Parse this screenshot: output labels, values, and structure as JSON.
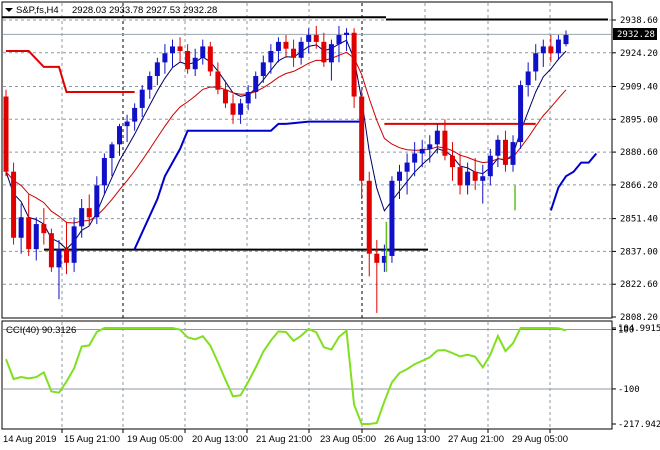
{
  "header": {
    "symbol": "S&P,fs,H4",
    "ohlc": "2928.03 2933.78 2927.53 2932.28"
  },
  "indicator": {
    "name": "CCI(40) 90.3126"
  },
  "price_axis": {
    "labels": [
      "2938.60",
      "2924.20",
      "2909.40",
      "2895.00",
      "2880.60",
      "2866.20",
      "2851.40",
      "2837.00",
      "2822.60",
      "2808.20"
    ],
    "current_price": "2932.28"
  },
  "cci_axis": {
    "labels": [
      "104.9915",
      "100",
      "-100",
      "-217.9424"
    ]
  },
  "time_axis": {
    "labels": [
      "14 Aug 2019",
      "15 Aug 21:00",
      "19 Aug 05:00",
      "20 Aug 13:00",
      "21 Aug 21:00",
      "23 Aug 05:00",
      "26 Aug 13:00",
      "27 Aug 21:00",
      "29 Aug 05:00"
    ]
  },
  "colors": {
    "bull": "#1010c8",
    "bear": "#e00000",
    "ma_fast": "#000066",
    "ma_slow": "#cc0000",
    "stop_red": "#e00000",
    "stop_blue": "#0000cc",
    "cci": "#80e020",
    "grid": "#8c9aa6",
    "sr": "#000000"
  },
  "chart_data": {
    "type": "candlestick",
    "ylim": [
      2808.2,
      2940.0
    ],
    "candles": [
      [
        2905,
        2908,
        2870,
        2872
      ],
      [
        2872,
        2876,
        2840,
        2843
      ],
      [
        2843,
        2858,
        2836,
        2852
      ],
      [
        2852,
        2862,
        2835,
        2838
      ],
      [
        2838,
        2852,
        2833,
        2849
      ],
      [
        2849,
        2856,
        2840,
        2845
      ],
      [
        2845,
        2847,
        2828,
        2830
      ],
      [
        2830,
        2842,
        2816,
        2838
      ],
      [
        2838,
        2850,
        2827,
        2832
      ],
      [
        2832,
        2852,
        2828,
        2848
      ],
      [
        2848,
        2860,
        2843,
        2856
      ],
      [
        2856,
        2862,
        2848,
        2852
      ],
      [
        2852,
        2870,
        2849,
        2866
      ],
      [
        2866,
        2880,
        2862,
        2878
      ],
      [
        2878,
        2885,
        2870,
        2884
      ],
      [
        2884,
        2893,
        2879,
        2892
      ],
      [
        2892,
        2897,
        2885,
        2894
      ],
      [
        2894,
        2902,
        2890,
        2900
      ],
      [
        2900,
        2910,
        2896,
        2908
      ],
      [
        2908,
        2916,
        2904,
        2914
      ],
      [
        2914,
        2922,
        2910,
        2920
      ],
      [
        2920,
        2928,
        2915,
        2924
      ],
      [
        2924,
        2930,
        2918,
        2927
      ],
      [
        2927,
        2931,
        2920,
        2925
      ],
      [
        2925,
        2928,
        2915,
        2917
      ],
      [
        2917,
        2926,
        2914,
        2922
      ],
      [
        2922,
        2930,
        2919,
        2927
      ],
      [
        2927,
        2929,
        2914,
        2916
      ],
      [
        2916,
        2920,
        2906,
        2908
      ],
      [
        2908,
        2912,
        2900,
        2902
      ],
      [
        2902,
        2906,
        2893,
        2897
      ],
      [
        2897,
        2904,
        2893,
        2902
      ],
      [
        2902,
        2910,
        2899,
        2907
      ],
      [
        2907,
        2916,
        2904,
        2914
      ],
      [
        2914,
        2923,
        2911,
        2920
      ],
      [
        2920,
        2928,
        2915,
        2925
      ],
      [
        2925,
        2931,
        2920,
        2929
      ],
      [
        2929,
        2932,
        2922,
        2926
      ],
      [
        2926,
        2930,
        2918,
        2922
      ],
      [
        2922,
        2931,
        2919,
        2929
      ],
      [
        2929,
        2935,
        2924,
        2932
      ],
      [
        2932,
        2936,
        2926,
        2929
      ],
      [
        2929,
        2933,
        2918,
        2920
      ],
      [
        2920,
        2930,
        2912,
        2928
      ],
      [
        2928,
        2936,
        2920,
        2932
      ],
      [
        2932,
        2935,
        2925,
        2933
      ],
      [
        2933,
        2935,
        2900,
        2905
      ],
      [
        2905,
        2908,
        2860,
        2868
      ],
      [
        2868,
        2872,
        2826,
        2836
      ],
      [
        2836,
        2842,
        2810,
        2832
      ],
      [
        2832,
        2840,
        2828,
        2835
      ],
      [
        2835,
        2870,
        2832,
        2868
      ],
      [
        2868,
        2875,
        2860,
        2872
      ],
      [
        2872,
        2880,
        2862,
        2876
      ],
      [
        2876,
        2885,
        2870,
        2880
      ],
      [
        2880,
        2886,
        2874,
        2882
      ],
      [
        2882,
        2888,
        2876,
        2884
      ],
      [
        2884,
        2893,
        2880,
        2890
      ],
      [
        2890,
        2895,
        2877,
        2879
      ],
      [
        2879,
        2885,
        2868,
        2874
      ],
      [
        2874,
        2880,
        2862,
        2866
      ],
      [
        2866,
        2876,
        2862,
        2872
      ],
      [
        2872,
        2878,
        2864,
        2868
      ],
      [
        2868,
        2875,
        2858,
        2870
      ],
      [
        2870,
        2882,
        2866,
        2879
      ],
      [
        2879,
        2888,
        2874,
        2886
      ],
      [
        2886,
        2890,
        2872,
        2875
      ],
      [
        2875,
        2888,
        2872,
        2885
      ],
      [
        2885,
        2912,
        2882,
        2910
      ],
      [
        2910,
        2920,
        2905,
        2916
      ],
      [
        2916,
        2928,
        2912,
        2924
      ],
      [
        2924,
        2930,
        2918,
        2927
      ],
      [
        2927,
        2932,
        2920,
        2924
      ],
      [
        2924,
        2932,
        2921,
        2930
      ],
      [
        2928,
        2934,
        2927,
        2932
      ]
    ]
  }
}
